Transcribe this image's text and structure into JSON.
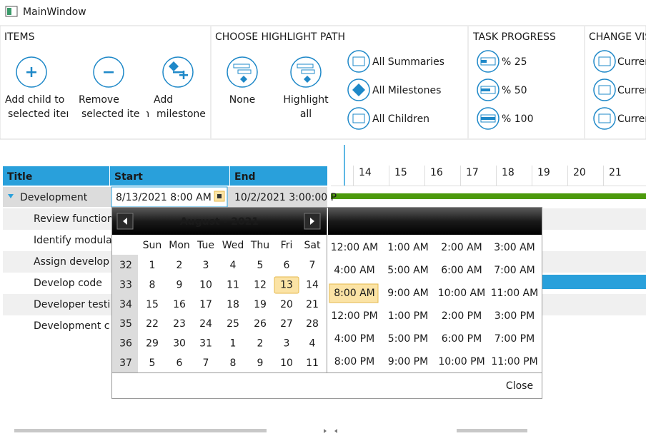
{
  "window": {
    "title": "MainWindow"
  },
  "ribbon": {
    "items": {
      "label": "ITEMS",
      "buttons": [
        [
          "Add child to",
          "selected item"
        ],
        [
          "Remove",
          "selected item"
        ],
        [
          "Add",
          "milestone"
        ]
      ]
    },
    "highlight": {
      "label": "CHOOSE HIGHLIGHT PATH",
      "large": [
        [
          "None"
        ],
        [
          "Highlight",
          "all"
        ]
      ],
      "small": [
        "All Summaries",
        "All Milestones",
        "All Children"
      ]
    },
    "progress": {
      "label": "TASK PROGRESS",
      "buttons": [
        "% 25",
        "% 50",
        "% 100"
      ]
    },
    "visibility": {
      "label": "CHANGE VIS",
      "buttons": [
        "Curren",
        "Curren",
        "Curren"
      ]
    }
  },
  "grid": {
    "columns": [
      "Title",
      "Start",
      "End"
    ],
    "parent": [
      "Development",
      "8/13/2021 8:00 AM",
      "10/2/2021 3:00:00 P"
    ],
    "children": [
      "Review function",
      "Identify modula",
      "Assign develop",
      "Develop code",
      "Developer testi",
      "Development c"
    ]
  },
  "timeline": {
    "days": [
      14,
      15,
      16,
      17,
      18,
      19,
      20,
      21
    ]
  },
  "calendar": {
    "title": "August - 2021",
    "weekdays": [
      "Sun",
      "Mon",
      "Tue",
      "Wed",
      "Thu",
      "Fri",
      "Sat"
    ],
    "weeks": [
      32,
      33,
      34,
      35,
      36,
      37
    ],
    "days": [
      [
        1,
        2,
        3,
        4,
        5,
        6,
        7
      ],
      [
        8,
        9,
        10,
        11,
        12,
        13,
        14
      ],
      [
        15,
        16,
        17,
        18,
        19,
        20,
        21
      ],
      [
        22,
        23,
        24,
        25,
        26,
        27,
        28
      ],
      [
        29,
        30,
        31,
        1,
        2,
        3,
        4
      ],
      [
        5,
        6,
        7,
        8,
        9,
        10,
        11
      ]
    ],
    "times": [
      [
        "12:00 AM",
        "1:00 AM",
        "2:00 AM",
        "3:00 AM"
      ],
      [
        "4:00 AM",
        "5:00 AM",
        "6:00 AM",
        "7:00 AM"
      ],
      [
        "8:00 AM",
        "9:00 AM",
        "10:00 AM",
        "11:00 AM"
      ],
      [
        "12:00 PM",
        "1:00 PM",
        "2:00 PM",
        "3:00 PM"
      ],
      [
        "4:00 PM",
        "5:00 PM",
        "6:00 PM",
        "7:00 PM"
      ],
      [
        "8:00 PM",
        "9:00 PM",
        "10:00 PM",
        "11:00 PM"
      ]
    ],
    "close": "Close"
  }
}
